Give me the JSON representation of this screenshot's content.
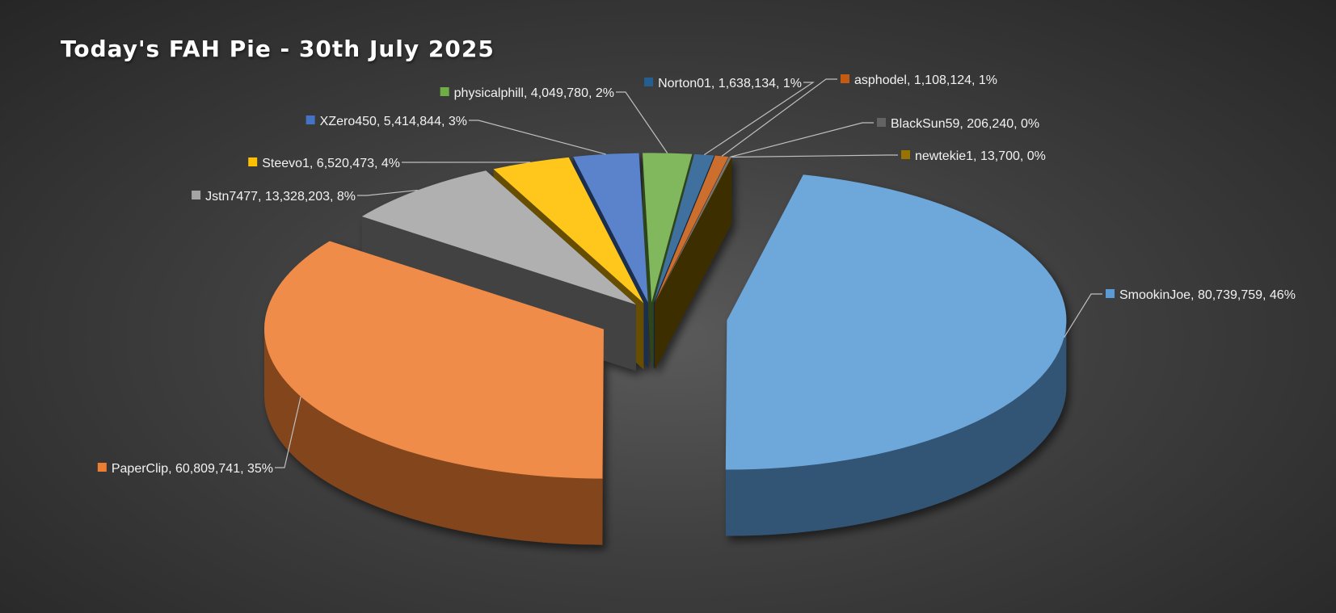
{
  "chart_data": {
    "type": "pie",
    "title": "Today's FAH Pie - 30th July 2025",
    "slices": [
      {
        "name": "SmookinJoe",
        "value": 80739759,
        "percent": 46,
        "label": "SmookinJoe, 80,739,759, 46%",
        "color": "#5b9bd5"
      },
      {
        "name": "PaperClip",
        "value": 60809741,
        "percent": 35,
        "label": "PaperClip, 60,809,741, 35%",
        "color": "#ed7d31"
      },
      {
        "name": "Jstn7477",
        "value": 13328203,
        "percent": 8,
        "label": "Jstn7477, 13,328,203, 8%",
        "color": "#a5a5a5"
      },
      {
        "name": "Steevo1",
        "value": 6520473,
        "percent": 4,
        "label": "Steevo1, 6,520,473, 4%",
        "color": "#ffc000"
      },
      {
        "name": "XZero450",
        "value": 5414844,
        "percent": 3,
        "label": "XZero450, 5,414,844, 3%",
        "color": "#4472c4"
      },
      {
        "name": "physicalphill",
        "value": 4049780,
        "percent": 2,
        "label": "physicalphill, 4,049,780, 2%",
        "color": "#70ad47"
      },
      {
        "name": "Norton01",
        "value": 1638134,
        "percent": 1,
        "label": "Norton01, 1,638,134, 1%",
        "color": "#255e91"
      },
      {
        "name": "asphodel",
        "value": 1108124,
        "percent": 1,
        "label": "asphodel, 1,108,124, 1%",
        "color": "#c55a11"
      },
      {
        "name": "BlackSun59",
        "value": 206240,
        "percent": 0,
        "label": "BlackSun59, 206,240, 0%",
        "color": "#636363"
      },
      {
        "name": "newtekie1",
        "value": 13700,
        "percent": 0,
        "label": "newtekie1, 13,700, 0%",
        "color": "#997300"
      }
    ]
  }
}
